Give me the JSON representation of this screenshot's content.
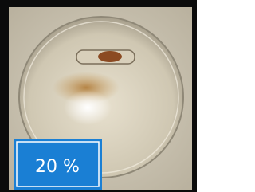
{
  "label": "20 %"
}
